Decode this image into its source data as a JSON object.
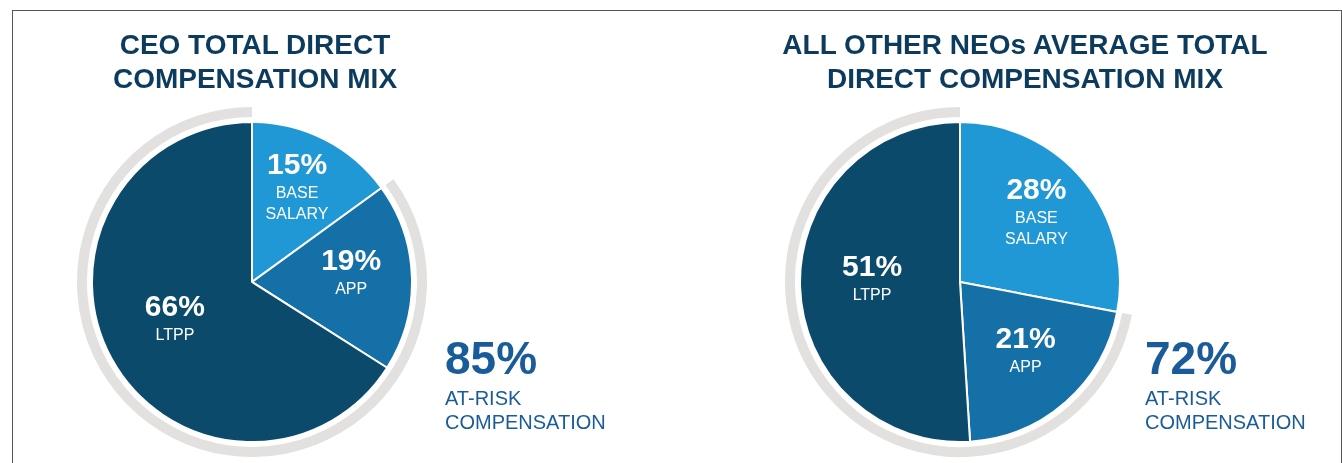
{
  "chart_data": [
    {
      "type": "pie",
      "title": "CEO TOTAL DIRECT COMPENSATION MIX",
      "categories": [
        "BASE SALARY",
        "APP",
        "LTPP"
      ],
      "values": [
        15,
        19,
        66
      ],
      "value_labels": [
        "15%",
        "19%",
        "66%"
      ],
      "colors": [
        "#2198d6",
        "#1670a8",
        "#0c4a6c"
      ],
      "legend": false,
      "annotations": [
        "85%",
        "AT-RISK COMPENSATION"
      ]
    },
    {
      "type": "pie",
      "title": "ALL OTHER NEOs AVERAGE TOTAL DIRECT COMPENSATION MIX",
      "categories": [
        "BASE SALARY",
        "APP",
        "LTPP"
      ],
      "values": [
        28,
        21,
        51
      ],
      "value_labels": [
        "28%",
        "21%",
        "51%"
      ],
      "colors": [
        "#2198d6",
        "#1670a8",
        "#0c4a6c"
      ],
      "legend": false,
      "annotations": [
        "72%",
        "AT-RISK COMPENSATION"
      ]
    }
  ]
}
